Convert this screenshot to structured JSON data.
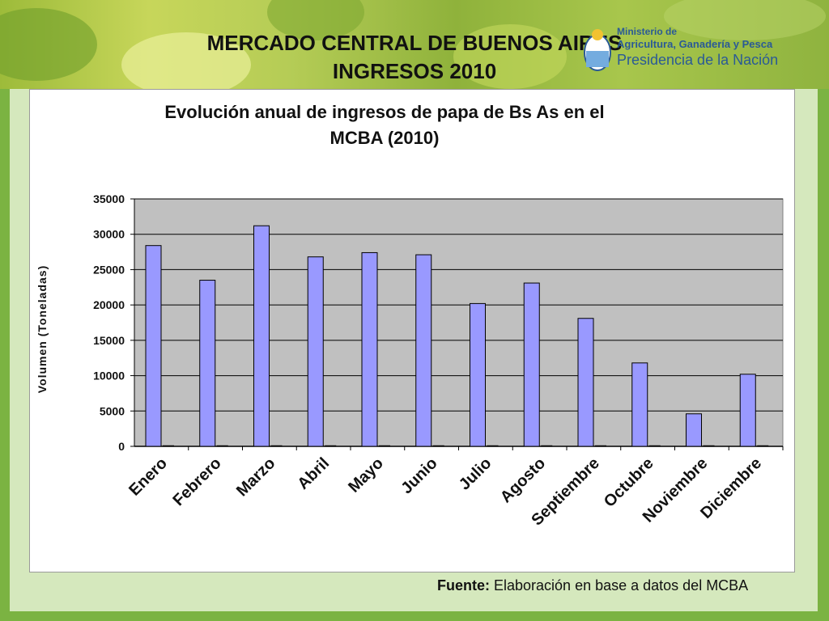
{
  "header": {
    "title_line1": "MERCADO CENTRAL DE BUENOS AIRES",
    "title_line2": "INGRESOS 2010"
  },
  "logo": {
    "line1": "Ministerio de",
    "line2": "Agricultura, Ganadería y Pesca",
    "line3": "Presidencia de la Nación"
  },
  "source": {
    "label": "Fuente:",
    "text": " Elaboración en base a datos del MCBA"
  },
  "colors": {
    "bar_fill": "#9999ff",
    "plot_bg": "#c0c0c0",
    "frame_green": "#7bb342",
    "content_bg": "#d5e8bd"
  },
  "chart_data": {
    "type": "bar",
    "title_line1": "Evolución anual de ingresos de papa de Bs As en el",
    "title_line2": "MCBA (2010)",
    "xlabel": "",
    "ylabel": "Volumen (Toneladas)",
    "ylim": [
      0,
      35000
    ],
    "yticks": [
      0,
      5000,
      10000,
      15000,
      20000,
      25000,
      30000,
      35000
    ],
    "grid": true,
    "categories": [
      "Enero",
      "Febrero",
      "Marzo",
      "Abril",
      "Mayo",
      "Junio",
      "Julio",
      "Agosto",
      "Septiembre",
      "Octubre",
      "Noviembre",
      "Diciembre"
    ],
    "values": [
      28400,
      23500,
      31200,
      26800,
      27400,
      27100,
      20200,
      23100,
      18100,
      11800,
      4600,
      10200
    ]
  }
}
